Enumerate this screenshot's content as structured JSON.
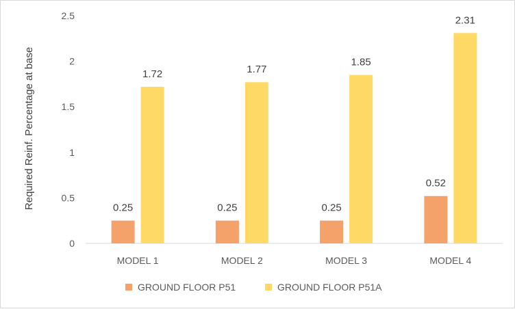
{
  "chart_data": {
    "type": "bar",
    "title": "",
    "xlabel": "",
    "ylabel": "Required Reinf. Percentage at base",
    "categories": [
      "MODEL 1",
      "MODEL 2",
      "MODEL 3",
      "MODEL 4"
    ],
    "series": [
      {
        "name": "GROUND FLOOR P51",
        "color": "#f4a16a",
        "values": [
          0.25,
          0.25,
          0.25,
          0.52
        ],
        "labels": [
          "0.25",
          "0.25",
          "0.25",
          "0.52"
        ]
      },
      {
        "name": "GROUND FLOOR P51A",
        "color": "#ffd966",
        "values": [
          1.72,
          1.77,
          1.85,
          2.31
        ],
        "labels": [
          "1.72",
          "1.77",
          "1.85",
          "2.31"
        ]
      }
    ],
    "ylim": [
      0,
      2.5
    ],
    "yticks": [
      0,
      0.5,
      1,
      1.5,
      2,
      2.5
    ],
    "ytick_labels": [
      "0",
      "0.5",
      "1",
      "1.5",
      "2",
      "2.5"
    ],
    "grid": false,
    "legend_position": "bottom"
  }
}
